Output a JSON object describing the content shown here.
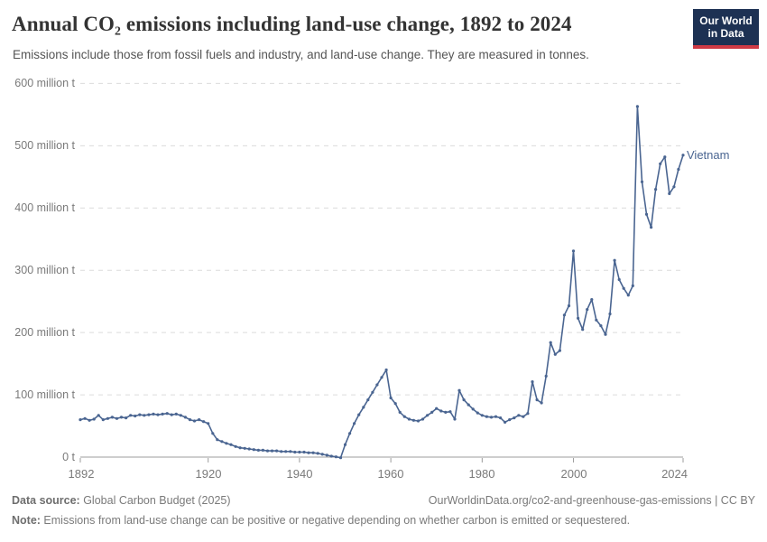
{
  "header": {
    "title": "Annual CO₂ emissions including land-use change, 1892 to 2024",
    "subtitle": "Emissions include those from fossil fuels and industry, and land-use change. They are measured in tonnes."
  },
  "logo": {
    "line1": "Our World",
    "line2": "in Data"
  },
  "chart_data": {
    "type": "line",
    "title": "Annual CO₂ emissions including land-use change, 1892 to 2024",
    "entity": "Vietnam",
    "unit": "tonnes",
    "x_start": 1892,
    "x_end": 2024,
    "x_interval": 1,
    "values": [
      60,
      62,
      59,
      61,
      67,
      60,
      62,
      64,
      62,
      64,
      63,
      67,
      66,
      68,
      67,
      68,
      69,
      68,
      69,
      70,
      68,
      69,
      67,
      64,
      60,
      58,
      60,
      57,
      54,
      38,
      28,
      25,
      22,
      20,
      17,
      15,
      14,
      13,
      12,
      11,
      11,
      10,
      10,
      10,
      9,
      9,
      9,
      8,
      8,
      8,
      7,
      7,
      6,
      4.5,
      3,
      1.5,
      0.5,
      -1,
      20,
      38,
      54,
      68,
      80,
      92,
      104,
      116,
      128,
      140,
      95,
      86,
      72,
      65,
      61,
      59,
      58,
      61,
      67,
      72,
      78,
      74,
      72,
      73,
      61,
      107,
      92,
      84,
      77,
      71,
      67,
      65,
      64,
      65,
      63,
      56,
      60,
      63,
      67,
      65,
      70,
      121,
      92,
      87,
      130,
      184,
      165,
      171,
      228,
      243,
      331,
      223,
      205,
      237,
      253,
      220,
      211,
      197,
      230,
      316,
      285,
      271,
      260,
      275,
      563,
      442,
      390,
      369,
      430,
      471,
      482,
      423,
      434,
      462,
      485
    ],
    "values_unit": "million tonnes",
    "ylim": [
      0,
      600
    ],
    "ytick_labels": [
      "0 t",
      "100 million t",
      "200 million t",
      "300 million t",
      "400 million t",
      "500 million t",
      "600 million t"
    ],
    "xticks": [
      1892,
      1920,
      1940,
      1960,
      1980,
      2000,
      2024
    ],
    "grid": true,
    "grid_style": "dashed",
    "legend_position": "end-of-line"
  },
  "colors": {
    "line": "#4a6591",
    "entity_label": "#4a6591",
    "grid": "#dcdcdc",
    "axis": "#9c9c9c",
    "logo_navy": "#1d3153",
    "logo_red": "#cf3a45"
  },
  "footer": {
    "datasource_label": "Data source:",
    "datasource_text": " Global Carbon Budget (2025)",
    "link": "OurWorldinData.org/co2-and-greenhouse-gas-emissions | CC BY",
    "note_label": "Note:",
    "note_text": " Emissions from land-use change can be positive or negative depending on whether carbon is emitted or sequestered."
  }
}
